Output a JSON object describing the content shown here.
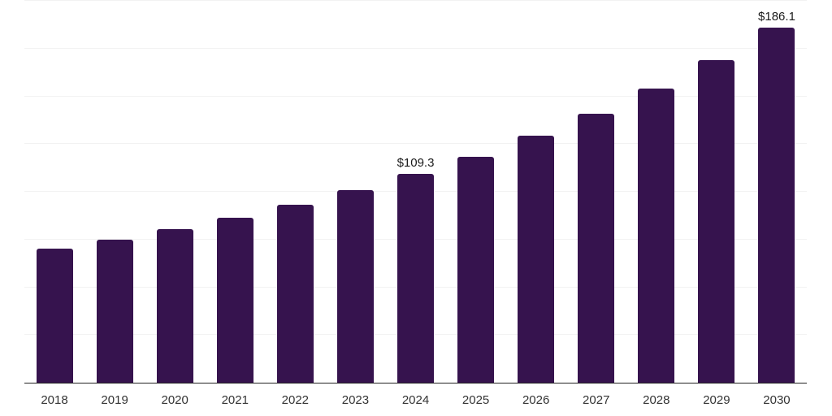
{
  "chart_data": {
    "type": "bar",
    "title": "",
    "xlabel": "",
    "ylabel": "",
    "categories": [
      "2018",
      "2019",
      "2020",
      "2021",
      "2022",
      "2023",
      "2024",
      "2025",
      "2026",
      "2027",
      "2028",
      "2029",
      "2030"
    ],
    "values": [
      70.1,
      74.8,
      80.4,
      86.3,
      93.3,
      101.0,
      109.3,
      118.2,
      129.4,
      141.0,
      154.0,
      169.0,
      186.1
    ],
    "value_labels": [
      {
        "category": "2024",
        "text": "$109.3"
      },
      {
        "category": "2030",
        "text": "$186.1"
      }
    ],
    "ylim": [
      0,
      200
    ],
    "grid_step": 25,
    "grid": true,
    "legend": false,
    "y_axis_tick_labels_visible": false,
    "bar_color": "#36134E",
    "grid_color": "#F2F2F2",
    "axis_color": "#222222",
    "tick_label_color": "#333333",
    "value_label_color": "#1A1A1A",
    "background_color": "#FFFFFF"
  }
}
